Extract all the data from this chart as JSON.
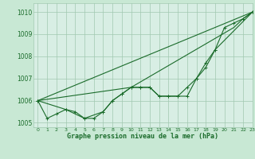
{
  "title": "Graphe pression niveau de la mer (hPa)",
  "bg_color": "#c8e8d4",
  "plot_bg_color": "#d8eee4",
  "grid_color": "#a0c8b0",
  "line_color": "#1a6b2a",
  "xlim": [
    -0.5,
    23
  ],
  "ylim": [
    1004.8,
    1010.4
  ],
  "yticks": [
    1005,
    1006,
    1007,
    1008,
    1009,
    1010
  ],
  "xtick_labels": [
    "0",
    "1",
    "2",
    "3",
    "4",
    "5",
    "6",
    "7",
    "8",
    "9",
    "10",
    "11",
    "12",
    "13",
    "14",
    "15",
    "16",
    "17",
    "18",
    "19",
    "20",
    "21",
    "22",
    "23"
  ],
  "series": [
    {
      "x": [
        0,
        1,
        2,
        3,
        4,
        5,
        6,
        7,
        8,
        9,
        10,
        11,
        12,
        13,
        14,
        15,
        16,
        17,
        18,
        19,
        20,
        21,
        22,
        23
      ],
      "y": [
        1006.0,
        1005.2,
        1005.4,
        1005.6,
        1005.5,
        1005.2,
        1005.2,
        1005.5,
        1006.0,
        1006.3,
        1006.6,
        1006.6,
        1006.6,
        1006.2,
        1006.2,
        1006.2,
        1006.2,
        1007.0,
        1007.5,
        1008.3,
        1009.3,
        1009.5,
        1009.7,
        1010.0
      ]
    },
    {
      "x": [
        0,
        3,
        5,
        7,
        8,
        9,
        10,
        11,
        12,
        13,
        14,
        15,
        16,
        17,
        18,
        19,
        23
      ],
      "y": [
        1006.0,
        1005.6,
        1005.2,
        1005.5,
        1006.0,
        1006.3,
        1006.6,
        1006.6,
        1006.6,
        1006.2,
        1006.2,
        1006.2,
        1006.6,
        1007.0,
        1007.7,
        1008.3,
        1010.0
      ]
    },
    {
      "x": [
        0,
        10,
        21,
        22,
        23
      ],
      "y": [
        1006.0,
        1006.6,
        1009.3,
        1009.7,
        1010.0
      ]
    },
    {
      "x": [
        0,
        23
      ],
      "y": [
        1006.0,
        1010.0
      ]
    }
  ]
}
